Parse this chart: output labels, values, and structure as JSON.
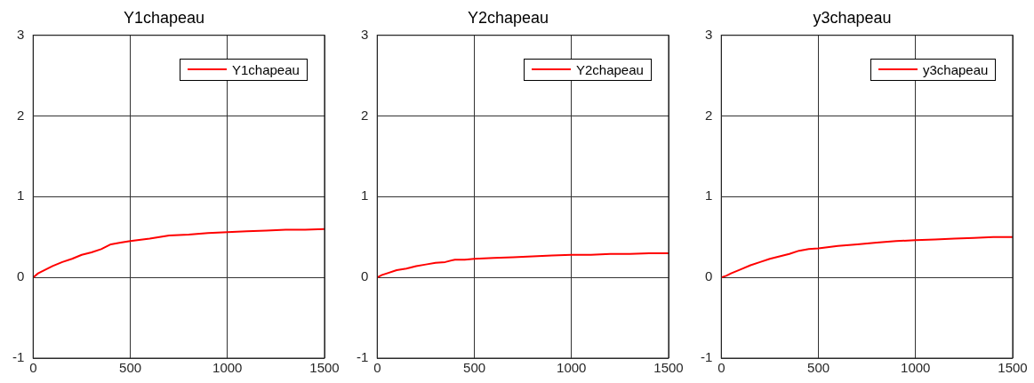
{
  "chart_data": [
    {
      "type": "line",
      "title": "Y1chapeau",
      "x": [
        0,
        25,
        50,
        100,
        150,
        200,
        250,
        300,
        350,
        400,
        450,
        500,
        600,
        700,
        800,
        900,
        1000,
        1100,
        1200,
        1300,
        1400,
        1500
      ],
      "series": [
        {
          "name": "Y1chapeau",
          "color": "#ff0000",
          "values": [
            0,
            0.05,
            0.08,
            0.14,
            0.19,
            0.23,
            0.28,
            0.31,
            0.35,
            0.41,
            0.43,
            0.45,
            0.48,
            0.52,
            0.53,
            0.55,
            0.56,
            0.57,
            0.58,
            0.59,
            0.59,
            0.6
          ]
        }
      ],
      "xlim": [
        0,
        1500
      ],
      "xticks": [
        0,
        500,
        1000,
        1500
      ],
      "ylim": [
        -1,
        3
      ],
      "yticks": [
        -1,
        0,
        1,
        2,
        3
      ],
      "grid": true,
      "legend": "top right",
      "marker": "none",
      "line_style": "solid"
    },
    {
      "type": "line",
      "title": "Y2chapeau",
      "x": [
        0,
        25,
        50,
        100,
        150,
        200,
        250,
        300,
        350,
        400,
        450,
        500,
        600,
        700,
        800,
        900,
        1000,
        1100,
        1200,
        1300,
        1400,
        1500
      ],
      "series": [
        {
          "name": "Y2chapeau",
          "color": "#ff0000",
          "values": [
            0,
            0.03,
            0.05,
            0.09,
            0.11,
            0.14,
            0.16,
            0.18,
            0.19,
            0.22,
            0.22,
            0.23,
            0.24,
            0.25,
            0.26,
            0.27,
            0.28,
            0.28,
            0.29,
            0.29,
            0.3,
            0.3
          ]
        }
      ],
      "xlim": [
        0,
        1500
      ],
      "xticks": [
        0,
        500,
        1000,
        1500
      ],
      "ylim": [
        -1,
        3
      ],
      "yticks": [
        -1,
        0,
        1,
        2,
        3
      ],
      "grid": true,
      "legend": "top right",
      "marker": "none",
      "line_style": "solid"
    },
    {
      "type": "line",
      "title": "y3chapeau",
      "x": [
        0,
        25,
        50,
        100,
        150,
        200,
        250,
        300,
        350,
        400,
        450,
        500,
        600,
        700,
        800,
        900,
        1000,
        1100,
        1200,
        1300,
        1400,
        1500
      ],
      "series": [
        {
          "name": "y3chapeau",
          "color": "#ff0000",
          "values": [
            0,
            0.02,
            0.05,
            0.1,
            0.15,
            0.19,
            0.23,
            0.26,
            0.29,
            0.33,
            0.35,
            0.36,
            0.39,
            0.41,
            0.43,
            0.45,
            0.46,
            0.47,
            0.48,
            0.49,
            0.5,
            0.5
          ]
        }
      ],
      "xlim": [
        0,
        1500
      ],
      "xticks": [
        0,
        500,
        1000,
        1500
      ],
      "ylim": [
        -1,
        3
      ],
      "yticks": [
        -1,
        0,
        1,
        2,
        3
      ],
      "grid": true,
      "legend": "top right",
      "marker": "none",
      "line_style": "solid"
    }
  ]
}
